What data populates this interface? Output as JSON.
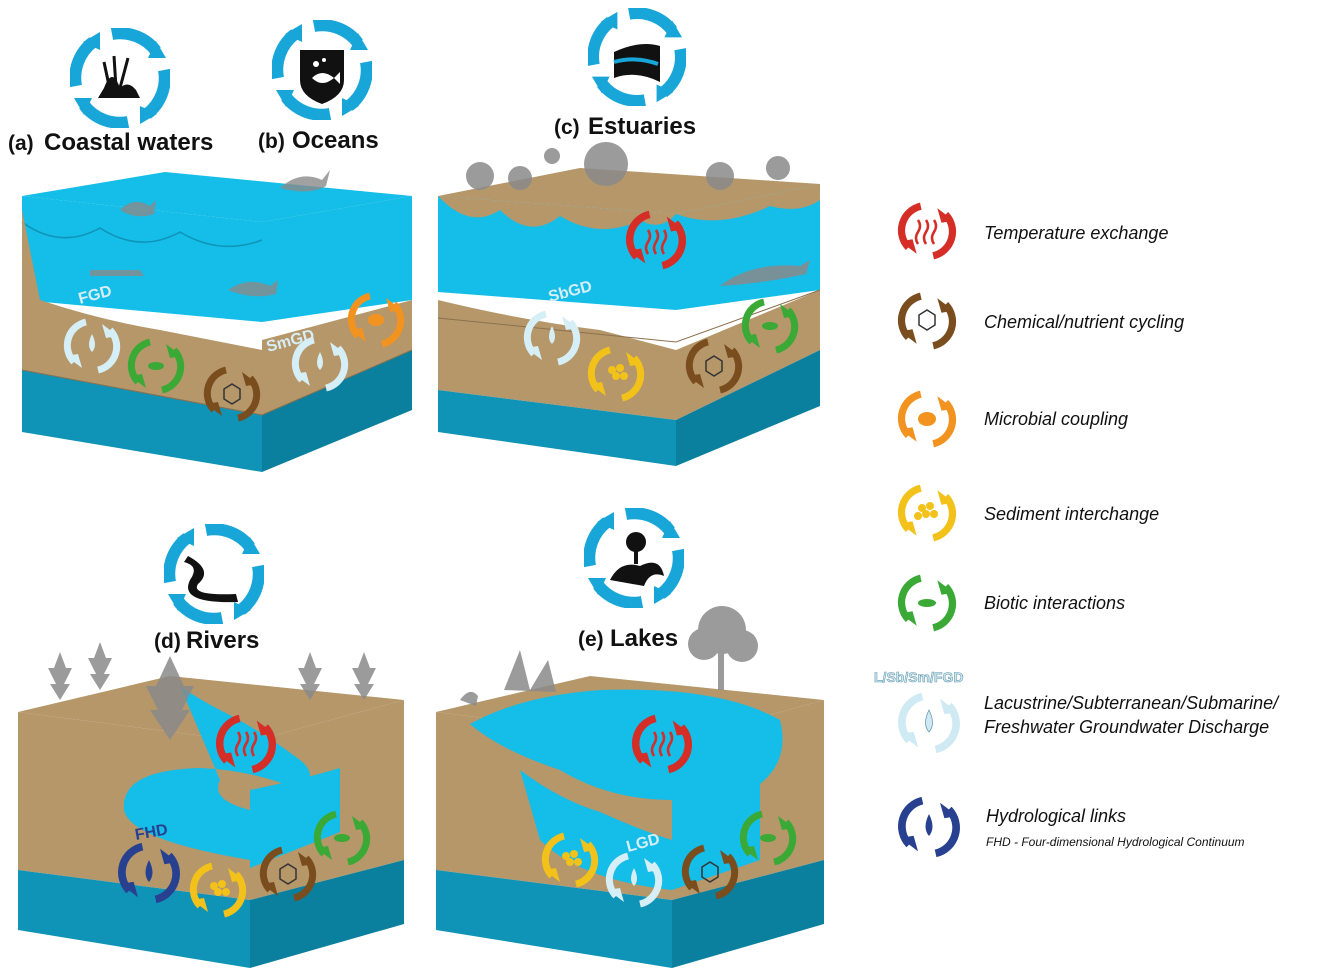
{
  "panels": {
    "coastal": {
      "letter": "(a)",
      "name": "Coastal waters"
    },
    "oceans": {
      "letter": "(b)",
      "name": "Oceans"
    },
    "estuaries": {
      "letter": "(c)",
      "name": "Estuaries"
    },
    "rivers": {
      "letter": "(d)",
      "name": "Rivers"
    },
    "lakes": {
      "letter": "(e)",
      "name": "Lakes"
    }
  },
  "discharge_labels": {
    "fgd": "FGD",
    "smgd": "SmGD",
    "sbgd": "SbGD",
    "fhd": "FHD",
    "lgd": "LGD"
  },
  "legend": {
    "temperature": "Temperature exchange",
    "chemical": "Chemical/nutrient cycling",
    "microbial": "Microbial coupling",
    "sediment": "Sediment interchange",
    "biotic": "Biotic interactions",
    "gd_tag": "L/Sb/Sm/FGD",
    "gd_line1": "Lacustrine/Subterranean/Submarine/",
    "gd_line2": "Freshwater Groundwater Discharge",
    "hydro_title": "Hydrological links",
    "hydro_sub": "FHD - Four-dimensional Hydrological Continuum"
  },
  "colors": {
    "water": "#15bde9",
    "water_dark": "#0f93b6",
    "sediment": "#b5976a",
    "temperature": "#d42e27",
    "chemical": "#7a4d1e",
    "microbial": "#f29320",
    "sediment_cycle": "#f2c21a",
    "biotic": "#3aa935",
    "groundwater": "#cfeaf2",
    "hydro": "#27408f"
  }
}
